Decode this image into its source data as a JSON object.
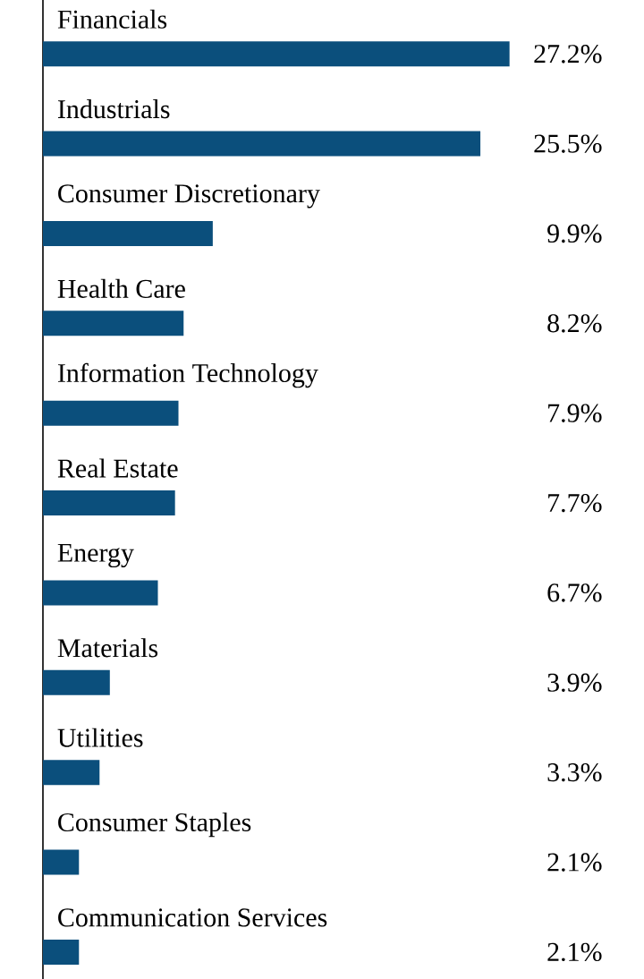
{
  "chart_data": {
    "type": "bar",
    "orientation": "horizontal",
    "color": "#0b4f7c",
    "categories": [
      "Financials",
      "Industrials",
      "Consumer Discretionary",
      "Health Care",
      "Information Technology",
      "Real Estate",
      "Energy",
      "Materials",
      "Utilities",
      "Consumer Staples",
      "Communication Services"
    ],
    "values": [
      27.2,
      25.5,
      9.9,
      8.2,
      7.9,
      7.7,
      6.7,
      3.9,
      3.3,
      2.1,
      2.1
    ],
    "value_labels": [
      "27.2%",
      "25.5%",
      "9.9%",
      "8.2%",
      "7.9%",
      "7.7%",
      "6.7%",
      "3.9%",
      "3.3%",
      "2.1%",
      "2.1%"
    ]
  }
}
